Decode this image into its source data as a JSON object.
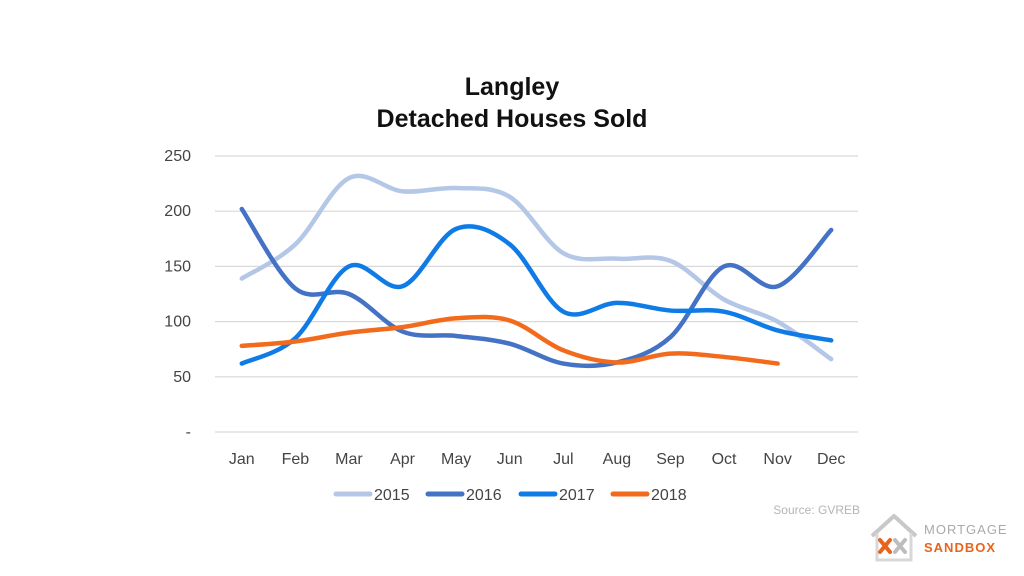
{
  "chart_data": {
    "type": "line",
    "title_lines": [
      "Langley",
      "Detached Houses Sold"
    ],
    "categories": [
      "Jan",
      "Feb",
      "Mar",
      "Apr",
      "May",
      "Jun",
      "Jul",
      "Aug",
      "Sep",
      "Oct",
      "Nov",
      "Dec"
    ],
    "y_tick_labels": [
      "-",
      "50",
      "100",
      "150",
      "200",
      "250"
    ],
    "y_tick_values": [
      0,
      50,
      100,
      150,
      200,
      250
    ],
    "ylim": [
      0,
      250
    ],
    "grid": "horizontal",
    "legend_position": "bottom",
    "series": [
      {
        "name": "2015",
        "color": "#b4c7e7",
        "values": [
          139,
          170,
          230,
          218,
          221,
          213,
          162,
          157,
          155,
          120,
          100,
          66
        ]
      },
      {
        "name": "2016",
        "color": "#4472c4",
        "values": [
          202,
          130,
          125,
          91,
          87,
          80,
          62,
          63,
          86,
          150,
          132,
          183
        ]
      },
      {
        "name": "2017",
        "color": "#0f7be6",
        "values": [
          62,
          85,
          150,
          132,
          184,
          170,
          109,
          117,
          110,
          109,
          92,
          83
        ]
      },
      {
        "name": "2018",
        "color": "#f26b1d",
        "values": [
          78,
          82,
          90,
          95,
          103,
          101,
          74,
          63,
          71,
          68,
          62,
          null
        ]
      }
    ]
  },
  "source": "Source: GVREB",
  "logo": {
    "line1": "MORTGAGE",
    "line2": "SANDBOX"
  }
}
